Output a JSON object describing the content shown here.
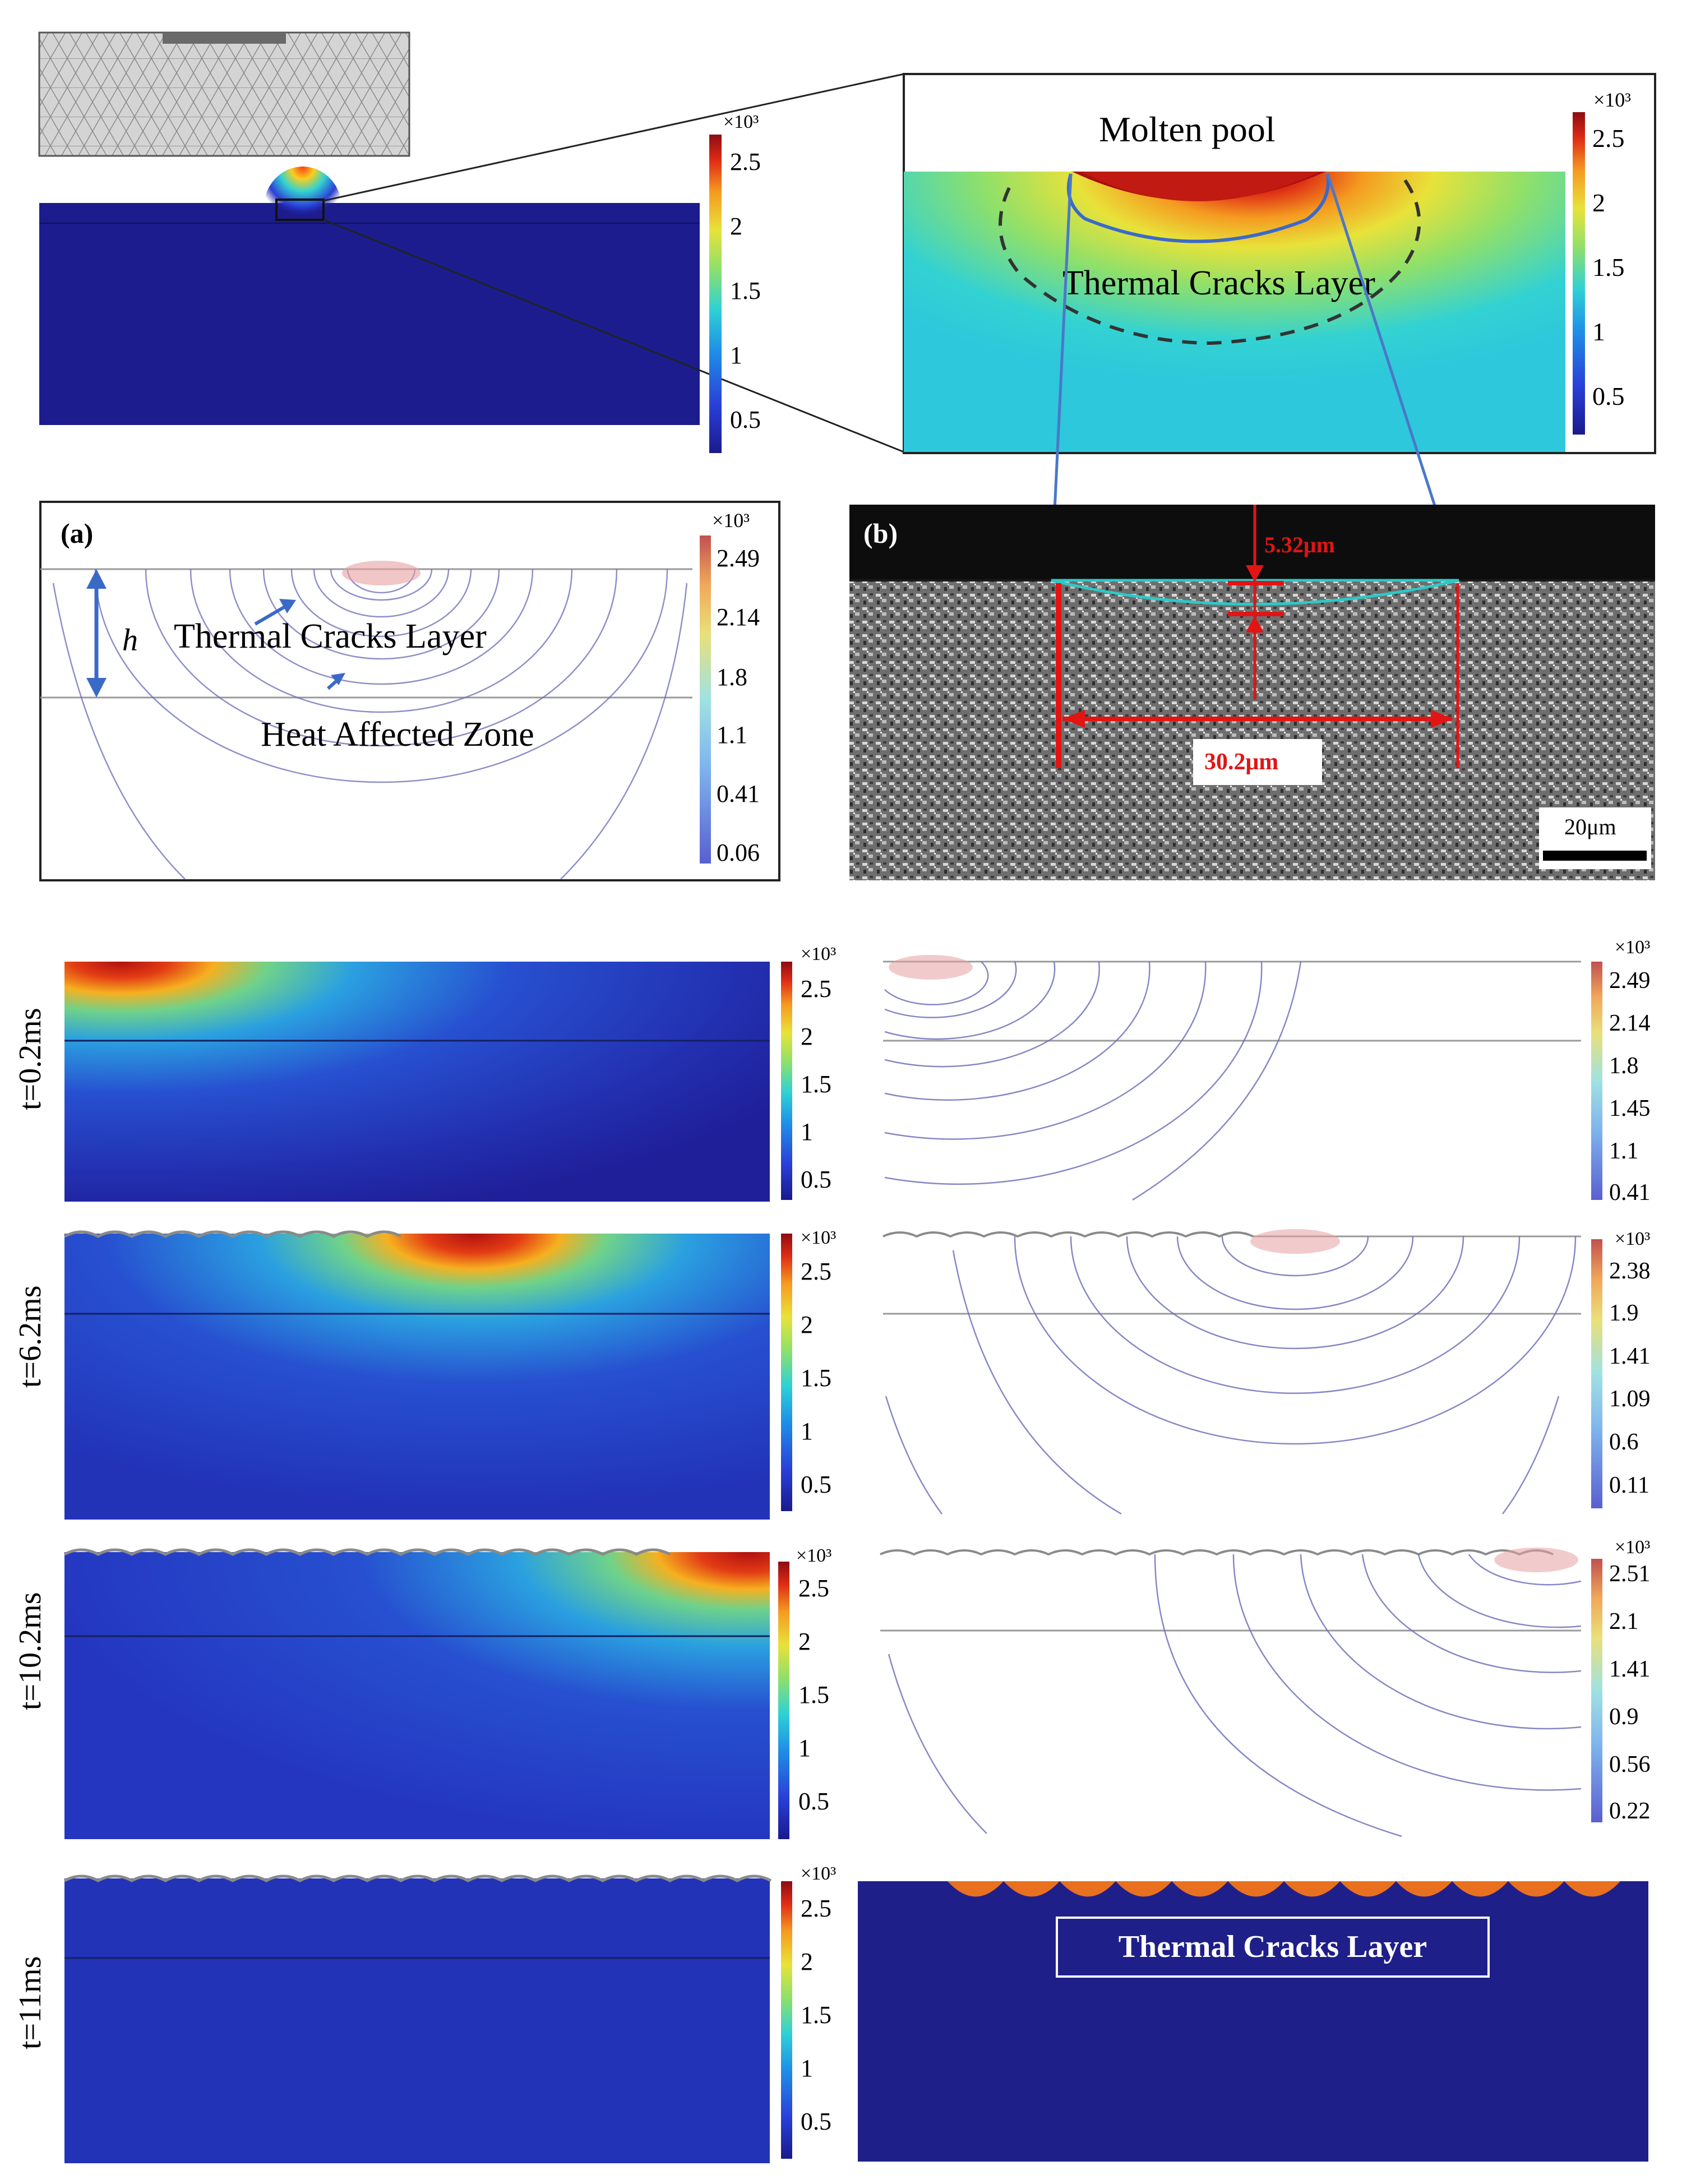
{
  "colorbar_multiplier": "×10³",
  "top_overview": {
    "colorbar_ticks": [
      "2.5",
      "2",
      "1.5",
      "1",
      "0.5"
    ]
  },
  "zoom_panel": {
    "molten_pool_label": "Molten pool",
    "cracks_label": "Thermal Cracks Layer",
    "colorbar_ticks": [
      "2.5",
      "2",
      "1.5",
      "1",
      "0.5"
    ]
  },
  "panel_a": {
    "letter": "(a)",
    "h_label": "h",
    "cracks_label": "Thermal Cracks Layer",
    "haz_label": "Heat Affected Zone",
    "colorbar_ticks": [
      "2.49",
      "2.14",
      "1.8",
      "1.1",
      "0.41",
      "0.06"
    ]
  },
  "panel_b": {
    "letter": "(b)",
    "depth_label": "5.32μm",
    "width_label": "30.2μm",
    "scale_label": "20μm"
  },
  "time_rows": [
    {
      "label": "t=0.2ms",
      "field_ticks": [
        "2.5",
        "2",
        "1.5",
        "1",
        "0.5"
      ],
      "contour_ticks": [
        "2.49",
        "2.14",
        "1.8",
        "1.45",
        "1.1",
        "0.41"
      ]
    },
    {
      "label": "t=6.2ms",
      "field_ticks": [
        "2.5",
        "2",
        "1.5",
        "1",
        "0.5"
      ],
      "contour_ticks": [
        "2.38",
        "1.9",
        "1.41",
        "1.09",
        "0.6",
        "0.11"
      ]
    },
    {
      "label": "t=10.2ms",
      "field_ticks": [
        "2.5",
        "2",
        "1.5",
        "1",
        "0.5"
      ],
      "contour_ticks": [
        "2.51",
        "2.1",
        "1.41",
        "0.9",
        "0.56",
        "0.22"
      ]
    },
    {
      "label": "t=11ms",
      "field_ticks": [
        "2.5",
        "2",
        "1.5",
        "1",
        "0.5"
      ]
    }
  ],
  "final_panel": {
    "cracks_label": "Thermal Cracks Layer"
  },
  "colors": {
    "substrate": "#1f1f8a",
    "cracks": "#e8701e",
    "callout_line": "#4a78c8",
    "measure": "#e21414"
  }
}
